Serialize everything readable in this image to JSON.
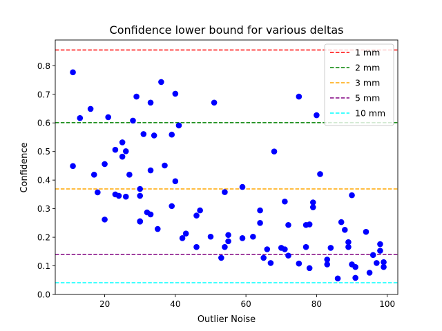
{
  "chart_data": {
    "type": "scatter",
    "title": "Confidence lower bound for various deltas",
    "xlabel": "Outlier Noise",
    "ylabel": "Confidence",
    "xlim": [
      6,
      103
    ],
    "ylim": [
      0,
      0.89
    ],
    "xticks": [
      20,
      40,
      60,
      80,
      100
    ],
    "yticks": [
      0.0,
      0.1,
      0.2,
      0.3,
      0.4,
      0.5,
      0.6,
      0.7,
      0.8
    ],
    "grid": false,
    "legend_position": "top-right",
    "marker_color": "#0000ff",
    "hlines": [
      {
        "label": "1 mm",
        "y": 0.855,
        "color": "#ff0000"
      },
      {
        "label": "2 mm",
        "y": 0.601,
        "color": "#008000"
      },
      {
        "label": "3 mm",
        "y": 0.369,
        "color": "#ffa500"
      },
      {
        "label": "5 mm",
        "y": 0.14,
        "color": "#800080"
      },
      {
        "label": "10 mm",
        "y": 0.041,
        "color": "#00ffff"
      }
    ],
    "points": [
      [
        11,
        0.777
      ],
      [
        11,
        0.449
      ],
      [
        13,
        0.617
      ],
      [
        16,
        0.649
      ],
      [
        17,
        0.419
      ],
      [
        18,
        0.357
      ],
      [
        20,
        0.456
      ],
      [
        20,
        0.262
      ],
      [
        21,
        0.62
      ],
      [
        23,
        0.506
      ],
      [
        23,
        0.35
      ],
      [
        24,
        0.345
      ],
      [
        25,
        0.532
      ],
      [
        25,
        0.482
      ],
      [
        26,
        0.501
      ],
      [
        26,
        0.342
      ],
      [
        27,
        0.419
      ],
      [
        28,
        0.608
      ],
      [
        29,
        0.692
      ],
      [
        30,
        0.369
      ],
      [
        30,
        0.345
      ],
      [
        30,
        0.256
      ],
      [
        30,
        0.255
      ],
      [
        31,
        0.561
      ],
      [
        32,
        0.287
      ],
      [
        33,
        0.671
      ],
      [
        33,
        0.434
      ],
      [
        33,
        0.28
      ],
      [
        34,
        0.556
      ],
      [
        35,
        0.229
      ],
      [
        36,
        0.743
      ],
      [
        37,
        0.451
      ],
      [
        39,
        0.559
      ],
      [
        39,
        0.309
      ],
      [
        40,
        0.702
      ],
      [
        40,
        0.396
      ],
      [
        41,
        0.591
      ],
      [
        42,
        0.197
      ],
      [
        43,
        0.213
      ],
      [
        46,
        0.276
      ],
      [
        46,
        0.166
      ],
      [
        47,
        0.294
      ],
      [
        50,
        0.202
      ],
      [
        51,
        0.671
      ],
      [
        53,
        0.128
      ],
      [
        54,
        0.358
      ],
      [
        54,
        0.166
      ],
      [
        55,
        0.208
      ],
      [
        55,
        0.186
      ],
      [
        59,
        0.376
      ],
      [
        59,
        0.197
      ],
      [
        62,
        0.202
      ],
      [
        64,
        0.294
      ],
      [
        64,
        0.25
      ],
      [
        65,
        0.128
      ],
      [
        66,
        0.158
      ],
      [
        67,
        0.11
      ],
      [
        68,
        0.5
      ],
      [
        70,
        0.163
      ],
      [
        71,
        0.325
      ],
      [
        71,
        0.158
      ],
      [
        72,
        0.243
      ],
      [
        72,
        0.136
      ],
      [
        75,
        0.692
      ],
      [
        75,
        0.108
      ],
      [
        77,
        0.243
      ],
      [
        77,
        0.166
      ],
      [
        78,
        0.245
      ],
      [
        78,
        0.092
      ],
      [
        79,
        0.322
      ],
      [
        79,
        0.305
      ],
      [
        80,
        0.627
      ],
      [
        81,
        0.421
      ],
      [
        83,
        0.122
      ],
      [
        83,
        0.105
      ],
      [
        84,
        0.163
      ],
      [
        86,
        0.056
      ],
      [
        87,
        0.253
      ],
      [
        88,
        0.226
      ],
      [
        89,
        0.183
      ],
      [
        89,
        0.166
      ],
      [
        90,
        0.347
      ],
      [
        90,
        0.105
      ],
      [
        91,
        0.096
      ],
      [
        91,
        0.058
      ],
      [
        94,
        0.219
      ],
      [
        95,
        0.076
      ],
      [
        96,
        0.138
      ],
      [
        97,
        0.11
      ],
      [
        98,
        0.176
      ],
      [
        98,
        0.153
      ],
      [
        99,
        0.113
      ],
      [
        99,
        0.096
      ]
    ]
  }
}
